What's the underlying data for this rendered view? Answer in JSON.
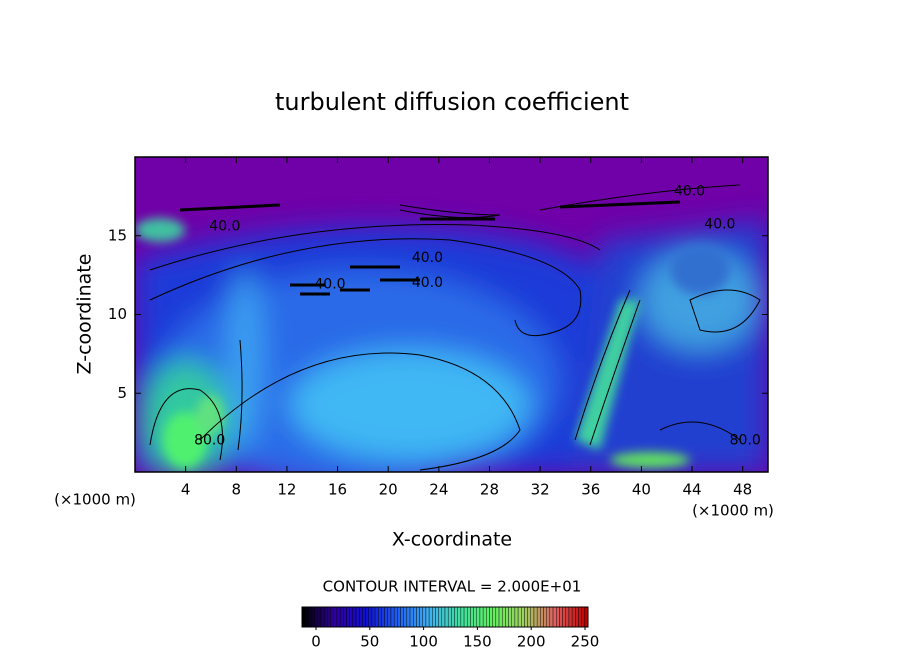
{
  "chart_data": {
    "type": "contour",
    "title": "turbulent diffusion coefficient",
    "x_label": "X-coordinate",
    "y_label": "Z-coordinate",
    "x_unit": "(×1000 m)",
    "y_unit": "(×1000 m)",
    "xlim": [
      0,
      50
    ],
    "xticks": [
      4,
      8,
      12,
      16,
      20,
      24,
      28,
      32,
      36,
      40,
      44,
      48
    ],
    "ylim": [
      0,
      20
    ],
    "yticks": [
      5,
      10,
      15
    ],
    "contour_interval_label": "CONTOUR INTERVAL = 2.000E+01",
    "contour_labels": [
      {
        "text": "40.0",
        "x": 23.1,
        "y": 13.6
      },
      {
        "text": "40.0",
        "x": 23.1,
        "y": 12.0
      },
      {
        "text": "40.0",
        "x": 15.4,
        "y": 11.9
      },
      {
        "text": "40.0",
        "x": 43.8,
        "y": 17.8
      },
      {
        "text": "40.0",
        "x": 46.2,
        "y": 15.7
      },
      {
        "text": "40.0",
        "x": 7.1,
        "y": 15.6
      },
      {
        "text": "80.0",
        "x": 5.9,
        "y": 2.0
      },
      {
        "text": "80.0",
        "x": 48.2,
        "y": 2.0
      }
    ],
    "colorbar": {
      "lim": [
        0,
        250
      ],
      "ticks": [
        0,
        50,
        100,
        150,
        200,
        250
      ],
      "colors": [
        "#000000",
        "#3000a0",
        "#1010d0",
        "#2060f0",
        "#40b0f0",
        "#40e0a0",
        "#60f060",
        "#a0d060",
        "#e06060",
        "#c00000"
      ]
    }
  }
}
